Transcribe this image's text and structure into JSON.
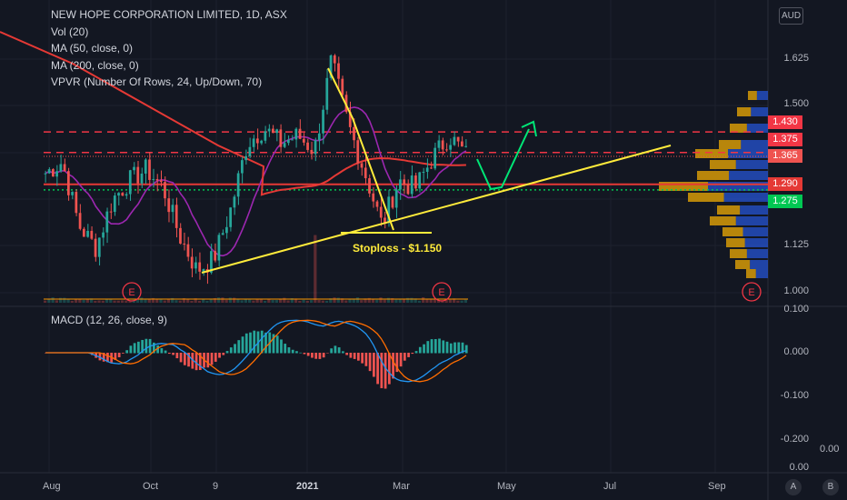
{
  "legend": {
    "title": "NEW HOPE CORPORATION LIMITED, 1D, ASX",
    "indicators": [
      "Vol (20)",
      "MA (50, close, 0)",
      "MA (200, close, 0)",
      "VPVR (Number Of Rows, 24, Up/Down, 70)"
    ]
  },
  "macd_legend": "MACD (12, 26, close, 9)",
  "currency": "AUD",
  "annotation": "Stoploss - $1.150",
  "earnings_marker": "E",
  "price_axis": [
    "1.625",
    "1.500",
    "1.125",
    "1.000"
  ],
  "price_tags": [
    {
      "label": "1.430",
      "color": "#f23645"
    },
    {
      "label": "1.375",
      "color": "#f23645"
    },
    {
      "label": "1.365",
      "color": "#ef5350"
    },
    {
      "label": "1.290",
      "color": "#e53935"
    },
    {
      "label": "1.275",
      "color": "#00c853"
    }
  ],
  "macd_axis": [
    "0.100",
    "0.000",
    "-0.100",
    "-0.200",
    "0.00"
  ],
  "macd_extra": "0.00",
  "time_axis": [
    "Aug",
    "Oct",
    "9",
    "2021",
    "Mar",
    "May",
    "Jul",
    "Sep"
  ],
  "scale_buttons": [
    "A",
    "B"
  ],
  "colors": {
    "background": "#131722",
    "up": "#26a69a",
    "down": "#ef5350",
    "ma50": "#9c27b0",
    "ma200": "#e53935",
    "trend": "#ffeb3b",
    "arrow": "#00e676"
  },
  "chart_data": {
    "type": "candlestick",
    "symbol": "NEW HOPE CORPORATION LIMITED",
    "interval": "1D",
    "exchange": "ASX",
    "price_range": [
      1.0,
      1.7
    ],
    "price_path": [
      [
        "Aug",
        1.32
      ],
      [
        "Aug",
        1.35
      ],
      [
        "Sep",
        1.18
      ],
      [
        "Sep",
        1.12
      ],
      [
        "Sep",
        1.25
      ],
      [
        "Oct",
        1.3
      ],
      [
        "Oct",
        1.33
      ],
      [
        "Oct",
        1.28
      ],
      [
        "Oct",
        1.15
      ],
      [
        "Nov",
        1.06
      ],
      [
        "Nov",
        1.09
      ],
      [
        "Nov",
        1.22
      ],
      [
        "Dec",
        1.4
      ],
      [
        "Dec",
        1.44
      ],
      [
        "Dec",
        1.4
      ],
      [
        "Jan",
        1.42
      ],
      [
        "Jan",
        1.38
      ],
      [
        "Jan",
        1.62
      ],
      [
        "Feb",
        1.45
      ],
      [
        "Feb",
        1.32
      ],
      [
        "Feb",
        1.18
      ],
      [
        "Mar",
        1.3
      ],
      [
        "Mar",
        1.28
      ],
      [
        "Mar",
        1.36
      ],
      [
        "Apr",
        1.42
      ],
      [
        "Apr",
        1.37
      ]
    ],
    "horizontal_levels": [
      {
        "price": 1.43,
        "style": "dashed",
        "color": "#f23645"
      },
      {
        "price": 1.375,
        "style": "dashed",
        "color": "#f23645"
      },
      {
        "price": 1.29,
        "style": "solid",
        "color": "#e53935"
      },
      {
        "price": 1.275,
        "style": "dotted",
        "color": "#00c853"
      }
    ],
    "stoploss": 1.15,
    "macd": {
      "ylim": [
        -0.2,
        0.1
      ]
    }
  }
}
